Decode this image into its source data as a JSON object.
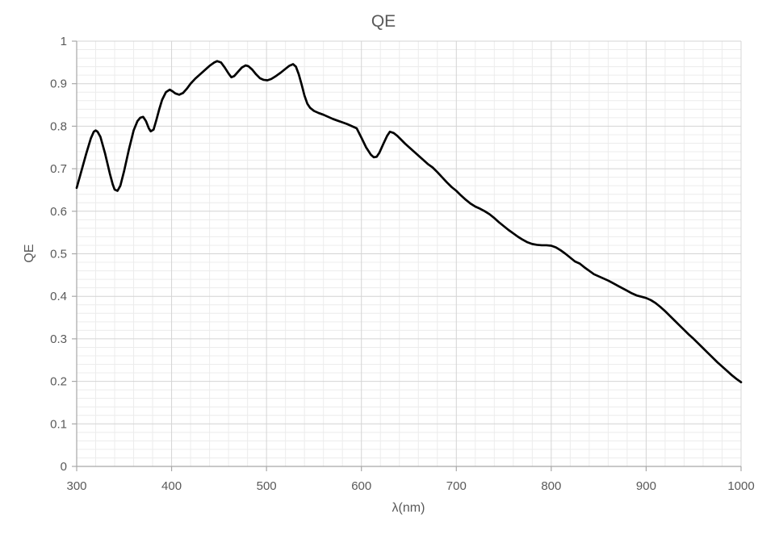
{
  "chart_data": {
    "type": "line",
    "title": "QE",
    "xlabel": "λ(nm)",
    "ylabel": "QE",
    "xlim": [
      300,
      1000
    ],
    "ylim": [
      0,
      1
    ],
    "x_tick_values": [
      300,
      400,
      500,
      600,
      700,
      800,
      900,
      1000
    ],
    "x_tick_labels": [
      "300",
      "400",
      "500",
      "600",
      "700",
      "800",
      "900",
      "1000"
    ],
    "y_tick_values": [
      0,
      0.1,
      0.2,
      0.3,
      0.4,
      0.5,
      0.6,
      0.7,
      0.8,
      0.9,
      1
    ],
    "y_tick_labels": [
      "0",
      "0.1",
      "0.2",
      "0.3",
      "0.4",
      "0.5",
      "0.6",
      "0.7",
      "0.8",
      "0.9",
      "1"
    ],
    "x_minor_step": 20,
    "y_minor_step": 0.02,
    "grid": "major+minor",
    "legend": "none",
    "series": [
      {
        "name": "QE",
        "color": "#000000",
        "x": [
          300,
          305,
          310,
          315,
          318,
          320,
          322,
          325,
          330,
          335,
          338,
          340,
          343,
          346,
          350,
          355,
          360,
          364,
          367,
          370,
          373,
          376,
          378,
          381,
          384,
          387,
          390,
          394,
          398,
          401,
          404,
          408,
          412,
          416,
          420,
          425,
          430,
          435,
          440,
          445,
          448,
          452,
          456,
          460,
          463,
          466,
          470,
          474,
          478,
          481,
          485,
          489,
          493,
          497,
          501,
          505,
          510,
          515,
          520,
          524,
          528,
          531,
          534,
          537,
          540,
          543,
          546,
          550,
          555,
          560,
          565,
          570,
          575,
          580,
          585,
          590,
          595,
          600,
          605,
          610,
          613,
          616,
          619,
          623,
          627,
          630,
          634,
          638,
          642,
          646,
          650,
          655,
          660,
          665,
          670,
          675,
          680,
          685,
          690,
          695,
          700,
          705,
          710,
          715,
          720,
          725,
          730,
          735,
          740,
          745,
          750,
          755,
          760,
          765,
          770,
          775,
          780,
          785,
          790,
          795,
          800,
          805,
          810,
          815,
          820,
          825,
          830,
          835,
          840,
          845,
          850,
          855,
          860,
          865,
          870,
          875,
          880,
          885,
          890,
          895,
          900,
          905,
          910,
          915,
          920,
          925,
          930,
          935,
          940,
          945,
          950,
          955,
          960,
          965,
          970,
          975,
          980,
          985,
          990,
          995,
          1000
        ],
        "y": [
          0.655,
          0.695,
          0.735,
          0.772,
          0.787,
          0.79,
          0.787,
          0.775,
          0.735,
          0.688,
          0.663,
          0.651,
          0.648,
          0.66,
          0.695,
          0.745,
          0.79,
          0.812,
          0.82,
          0.822,
          0.812,
          0.795,
          0.788,
          0.792,
          0.815,
          0.84,
          0.862,
          0.88,
          0.886,
          0.882,
          0.877,
          0.874,
          0.878,
          0.888,
          0.9,
          0.912,
          0.922,
          0.932,
          0.942,
          0.95,
          0.953,
          0.95,
          0.938,
          0.924,
          0.915,
          0.918,
          0.928,
          0.938,
          0.943,
          0.941,
          0.933,
          0.922,
          0.913,
          0.909,
          0.908,
          0.911,
          0.918,
          0.926,
          0.935,
          0.942,
          0.946,
          0.94,
          0.922,
          0.898,
          0.872,
          0.853,
          0.843,
          0.836,
          0.831,
          0.827,
          0.822,
          0.817,
          0.813,
          0.809,
          0.805,
          0.8,
          0.795,
          0.773,
          0.75,
          0.733,
          0.727,
          0.728,
          0.738,
          0.758,
          0.777,
          0.787,
          0.784,
          0.777,
          0.768,
          0.759,
          0.751,
          0.741,
          0.731,
          0.721,
          0.711,
          0.703,
          0.692,
          0.68,
          0.668,
          0.657,
          0.648,
          0.637,
          0.627,
          0.618,
          0.611,
          0.606,
          0.6,
          0.593,
          0.584,
          0.574,
          0.565,
          0.556,
          0.548,
          0.54,
          0.533,
          0.527,
          0.523,
          0.521,
          0.52,
          0.52,
          0.519,
          0.515,
          0.508,
          0.5,
          0.491,
          0.482,
          0.477,
          0.468,
          0.46,
          0.452,
          0.447,
          0.442,
          0.437,
          0.431,
          0.425,
          0.419,
          0.413,
          0.407,
          0.402,
          0.399,
          0.396,
          0.391,
          0.384,
          0.375,
          0.365,
          0.354,
          0.343,
          0.332,
          0.321,
          0.31,
          0.3,
          0.289,
          0.278,
          0.267,
          0.256,
          0.245,
          0.235,
          0.225,
          0.215,
          0.206,
          0.198
        ]
      }
    ]
  },
  "colors": {
    "series": "#000000",
    "grid_major": "#d4d4d4",
    "grid_minor": "#ececec",
    "axis": "#a8a8a8",
    "text": "#595959",
    "background": "#ffffff"
  }
}
